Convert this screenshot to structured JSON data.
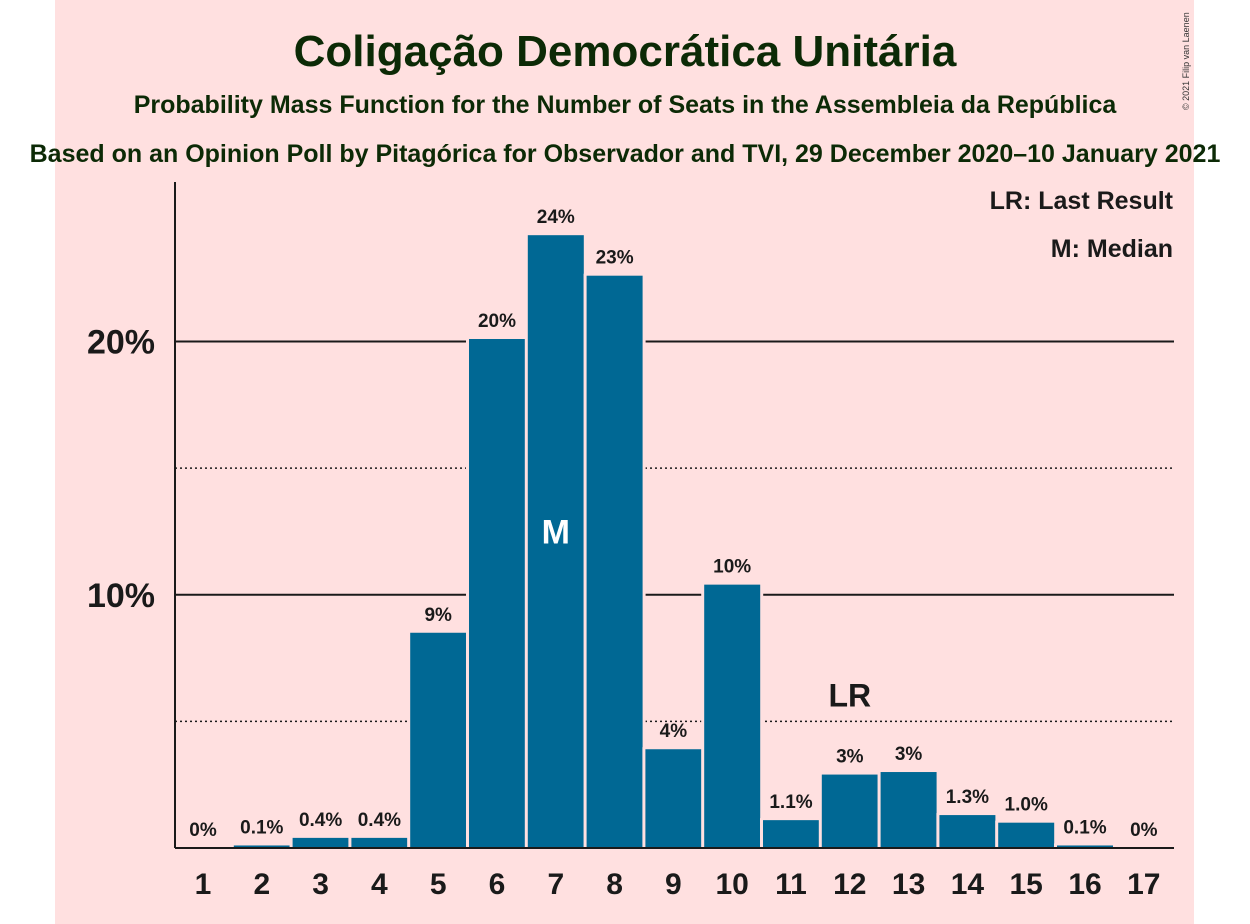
{
  "header": {
    "title": "Coligação Democrática Unitária",
    "subtitle": "Probability Mass Function for the Number of Seats in the Assembleia da República",
    "source": "Based on an Opinion Poll by Pitagórica for Observador and TVI, 29 December 2020–10 January 2021"
  },
  "copyright": "© 2021 Filip van Laenen",
  "legend": {
    "last_result": "LR: Last Result",
    "median": "M: Median"
  },
  "colors": {
    "bar": "#006894",
    "background": "#ffe0e0",
    "title": "#0c2a06"
  },
  "chart_data": {
    "type": "bar",
    "categories": [
      "1",
      "2",
      "3",
      "4",
      "5",
      "6",
      "7",
      "8",
      "9",
      "10",
      "11",
      "12",
      "13",
      "14",
      "15",
      "16",
      "17"
    ],
    "values": [
      0,
      0.1,
      0.4,
      0.4,
      8.5,
      20.1,
      24.2,
      22.6,
      3.9,
      10.4,
      1.1,
      2.9,
      3.0,
      1.3,
      1.0,
      0.1,
      0
    ],
    "data_labels": [
      "0%",
      "0.1%",
      "0.4%",
      "0.4%",
      "9%",
      "20%",
      "24%",
      "23%",
      "4%",
      "10%",
      "1.1%",
      "3%",
      "3%",
      "1.3%",
      "1.0%",
      "0.1%",
      "0%"
    ],
    "y_ticks": [
      {
        "value": 10,
        "label": "10%"
      },
      {
        "value": 20,
        "label": "20%"
      }
    ],
    "minor_gridlines": [
      5,
      15
    ],
    "ylim": [
      0,
      26.3
    ],
    "median": {
      "category": "7",
      "label": "M"
    },
    "last_result": {
      "category": "12",
      "label": "LR"
    },
    "xlabel": "",
    "ylabel": ""
  }
}
